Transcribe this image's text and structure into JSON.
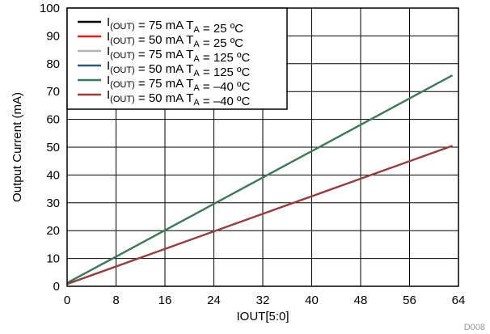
{
  "chart_data": {
    "type": "line",
    "xlabel": "IOUT[5:0]",
    "ylabel": "Output Current (mA)",
    "xlim": [
      0,
      64
    ],
    "ylim": [
      0,
      100
    ],
    "xticks": [
      0,
      8,
      16,
      24,
      32,
      40,
      48,
      56,
      64
    ],
    "yticks": [
      0,
      10,
      20,
      30,
      40,
      50,
      60,
      70,
      80,
      90,
      100
    ],
    "grid": true,
    "legend_position": "top-left",
    "figure_id": "D008",
    "series": [
      {
        "label": {
          "main": "I",
          "sub": "(OUT)",
          "value": " = 75 mA T",
          "tsub": "A",
          "temp": " = 25 ºC"
        },
        "color": "#000000",
        "x": [
          0,
          63
        ],
        "y": [
          1.2,
          75.8
        ]
      },
      {
        "label": {
          "main": "I",
          "sub": "(OUT)",
          "value": " = 50 mA T",
          "tsub": "A",
          "temp": " = 25 ºC"
        },
        "color": "#e41b1b",
        "x": [
          0,
          63
        ],
        "y": [
          0.8,
          50.5
        ]
      },
      {
        "label": {
          "main": "I",
          "sub": "(OUT)",
          "value": " = 75 mA T",
          "tsub": "A",
          "temp": " = 125 ºC"
        },
        "color": "#b3b3b3",
        "x": [
          0,
          63
        ],
        "y": [
          1.2,
          75.8
        ]
      },
      {
        "label": {
          "main": "I",
          "sub": "(OUT)",
          "value": " = 50 mA T",
          "tsub": "A",
          "temp": " = 125 ºC"
        },
        "color": "#2f5a74",
        "x": [
          0,
          63
        ],
        "y": [
          0.8,
          50.5
        ]
      },
      {
        "label": {
          "main": "I",
          "sub": "(OUT)",
          "value": " = 75 mA T",
          "tsub": "A",
          "temp": " = –40 ºC"
        },
        "color": "#3b7a57",
        "x": [
          0,
          63
        ],
        "y": [
          1.2,
          75.8
        ]
      },
      {
        "label": {
          "main": "I",
          "sub": "(OUT)",
          "value": " = 50 mA T",
          "tsub": "A",
          "temp": " = –40 ºC"
        },
        "color": "#9a3e3e",
        "x": [
          0,
          63
        ],
        "y": [
          0.8,
          50.5
        ]
      }
    ]
  }
}
